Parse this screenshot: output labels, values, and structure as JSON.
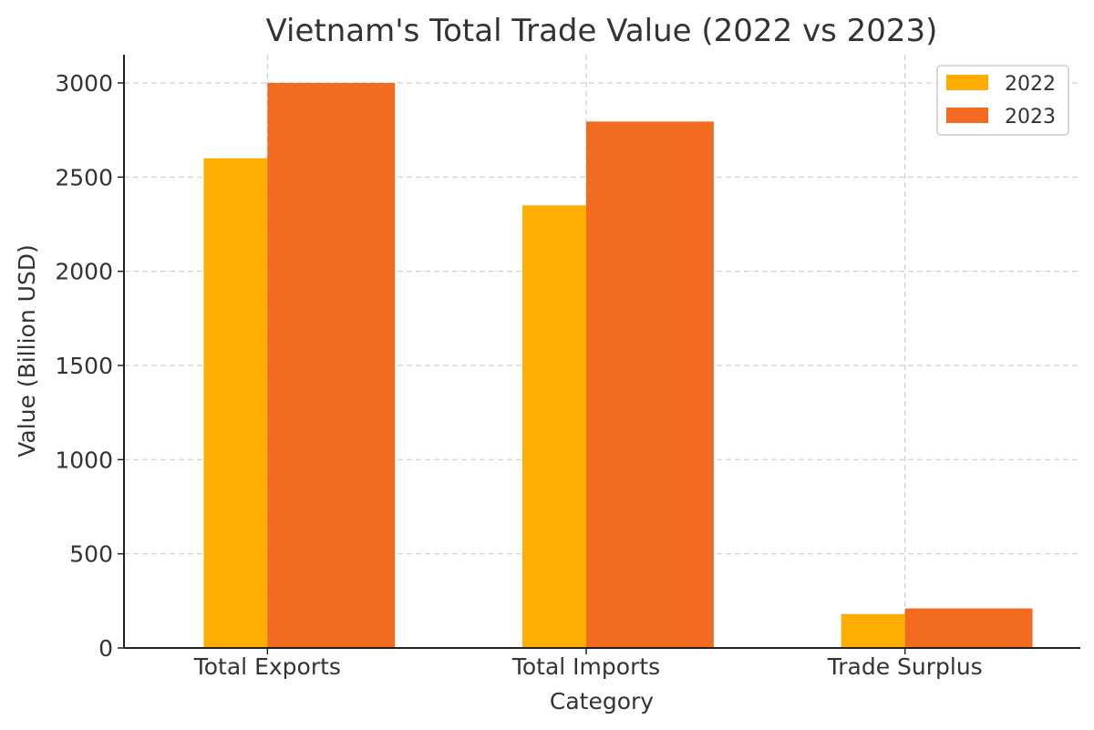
{
  "chart_data": {
    "type": "bar",
    "title": "Vietnam's Total Trade Value (2022 vs 2023)",
    "xlabel": "Category",
    "ylabel": "Value (Billion USD)",
    "categories": [
      "Total Exports",
      "Total Imports",
      "Trade Surplus"
    ],
    "series": [
      {
        "name": "2022",
        "values": [
          2600,
          2350,
          180
        ],
        "color": "#FFAE00"
      },
      {
        "name": "2023",
        "values": [
          3000,
          2795,
          210
        ],
        "color": "#F26B21"
      }
    ],
    "ylim": [
      0,
      3150
    ],
    "yticks": [
      0,
      500,
      1000,
      1500,
      2000,
      2500,
      3000
    ],
    "grid": true,
    "legend_position": "top-right"
  }
}
